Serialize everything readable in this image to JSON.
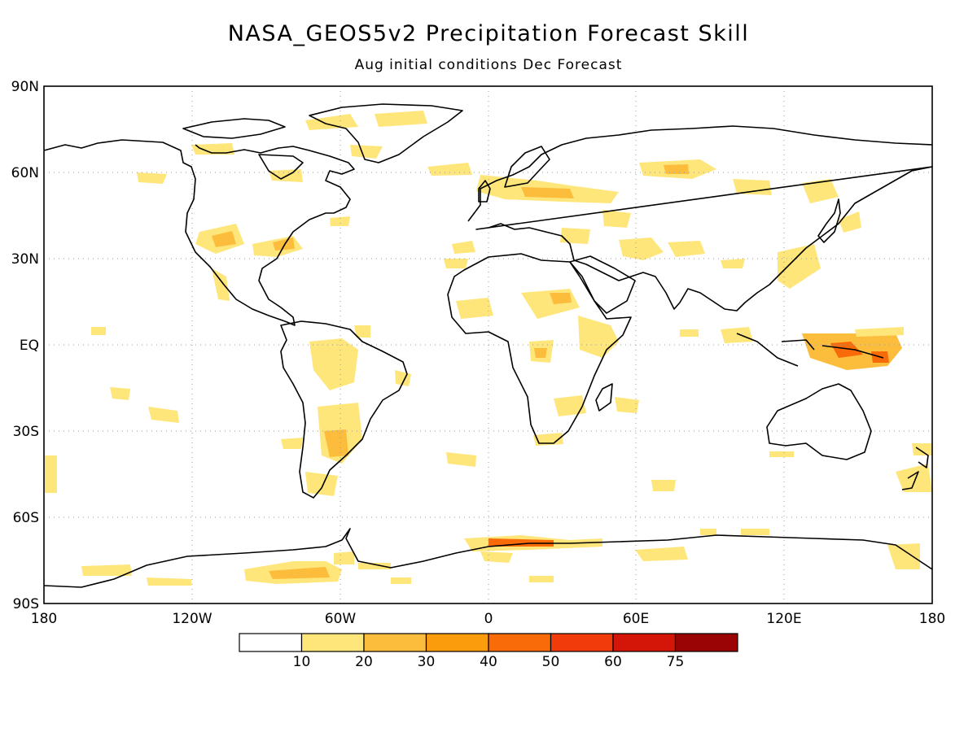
{
  "title": "NASA_GEOS5v2 Precipitation Forecast Skill",
  "subtitle": "Aug initial conditions   Dec Forecast",
  "map": {
    "lat_labels": [
      "90N",
      "60N",
      "30N",
      "EQ",
      "30S",
      "60S",
      "90S"
    ],
    "lon_labels": [
      "180",
      "120W",
      "60W",
      "0",
      "60E",
      "120E",
      "180"
    ],
    "gridlines": "dotted",
    "projection": "cylindrical equidistant"
  },
  "colorbar": {
    "labels": [
      "10",
      "20",
      "30",
      "40",
      "50",
      "60",
      "75"
    ],
    "colors": [
      "#ffffff",
      "#fee67a",
      "#fcbc3c",
      "#fb9c0c",
      "#f96a08",
      "#f23b0a",
      "#d41608",
      "#9a0404"
    ]
  },
  "skill_colors": {
    "low": "#fee67a",
    "mid": "#fcbc3c",
    "high": "#f96a08"
  }
}
